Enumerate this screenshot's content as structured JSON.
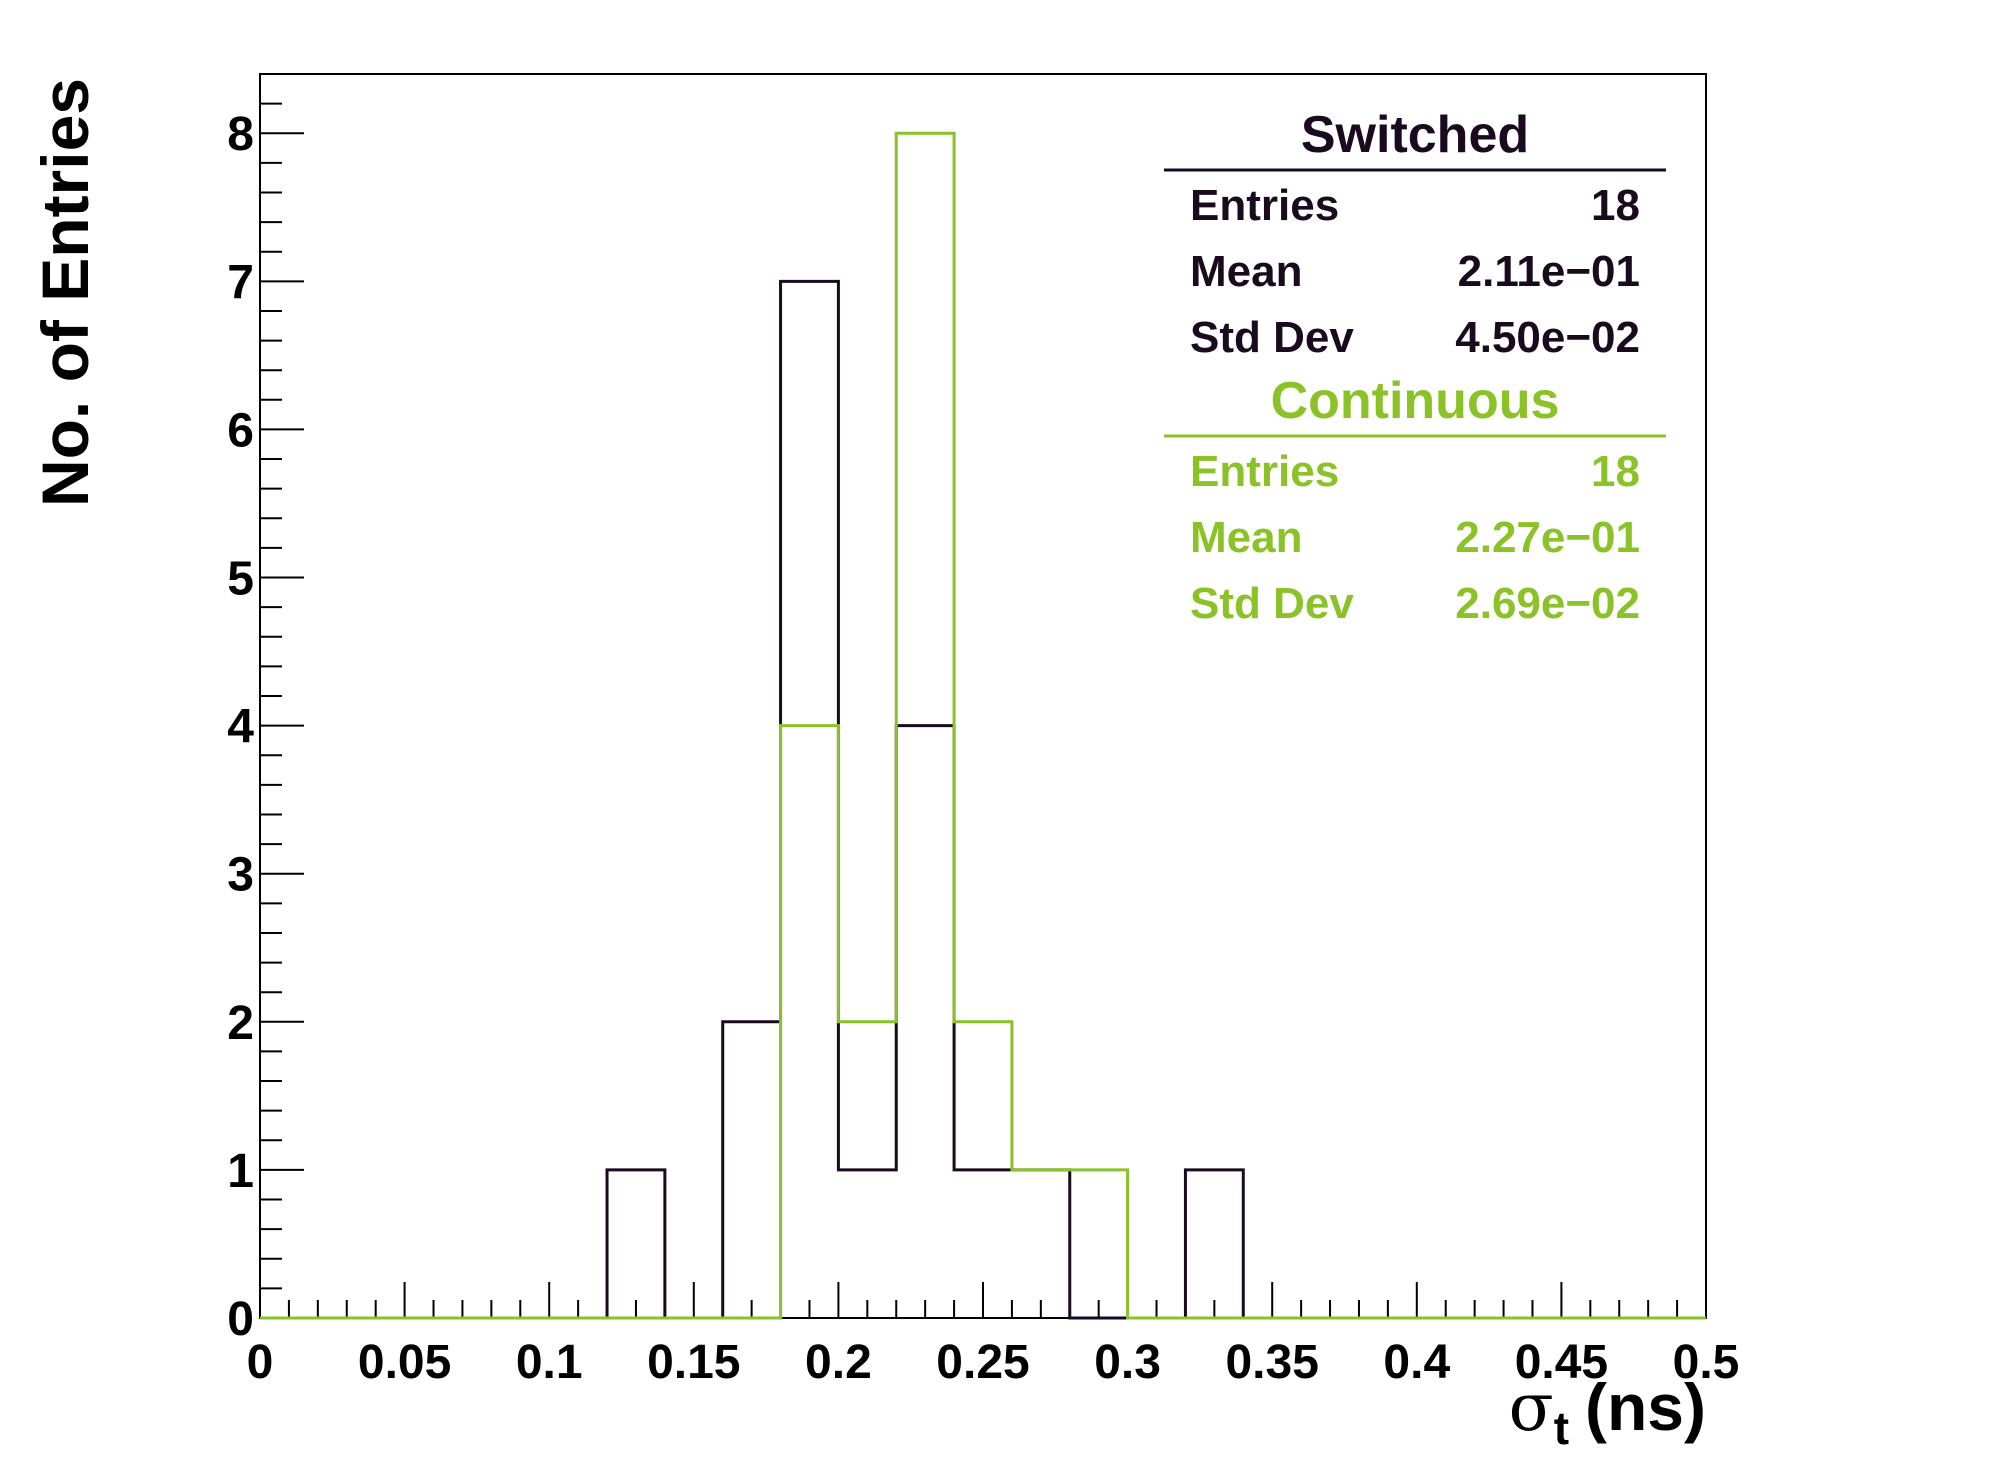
{
  "chart_data": {
    "type": "histogram",
    "bin_edges": [
      0,
      0.02,
      0.04,
      0.06,
      0.08,
      0.1,
      0.12,
      0.14,
      0.16,
      0.18,
      0.2,
      0.22,
      0.24,
      0.26,
      0.28,
      0.3,
      0.32,
      0.34,
      0.36,
      0.38,
      0.4,
      0.42,
      0.44,
      0.46,
      0.48,
      0.5
    ],
    "series": [
      {
        "name": "Switched",
        "color": "#1a0a1e",
        "values": [
          0,
          0,
          0,
          0,
          0,
          0,
          1,
          0,
          2,
          7,
          1,
          4,
          1,
          1,
          0,
          0,
          1,
          0,
          0,
          0,
          0,
          0,
          0,
          0,
          0
        ]
      },
      {
        "name": "Continuous",
        "color": "#8ac228",
        "values": [
          0,
          0,
          0,
          0,
          0,
          0,
          0,
          0,
          0,
          4,
          2,
          8,
          2,
          1,
          1,
          0,
          0,
          0,
          0,
          0,
          0,
          0,
          0,
          0,
          0
        ]
      }
    ],
    "xlim": [
      0,
      0.5
    ],
    "ylim": [
      0,
      8.4
    ],
    "x_ticks": [
      "0",
      "0.05",
      "0.1",
      "0.15",
      "0.2",
      "0.25",
      "0.3",
      "0.35",
      "0.4",
      "0.45",
      "0.5"
    ],
    "y_ticks": [
      "0",
      "1",
      "2",
      "3",
      "4",
      "5",
      "6",
      "7",
      "8"
    ],
    "xlabel": {
      "symbol": "σ",
      "subscript": "t",
      "unit": "(ns)"
    },
    "ylabel": "No. of Entries",
    "stats": [
      {
        "title": "Switched",
        "color": "#1a0a1e",
        "rows": [
          {
            "label": "Entries",
            "value": "18"
          },
          {
            "label": "Mean",
            "value": "2.11e−01"
          },
          {
            "label": "Std Dev",
            "value": "4.50e−02"
          }
        ]
      },
      {
        "title": "Continuous",
        "color": "#8ac228",
        "rows": [
          {
            "label": "Entries",
            "value": "18"
          },
          {
            "label": "Mean",
            "value": "2.27e−01"
          },
          {
            "label": "Std Dev",
            "value": "2.69e−02"
          }
        ]
      }
    ]
  }
}
